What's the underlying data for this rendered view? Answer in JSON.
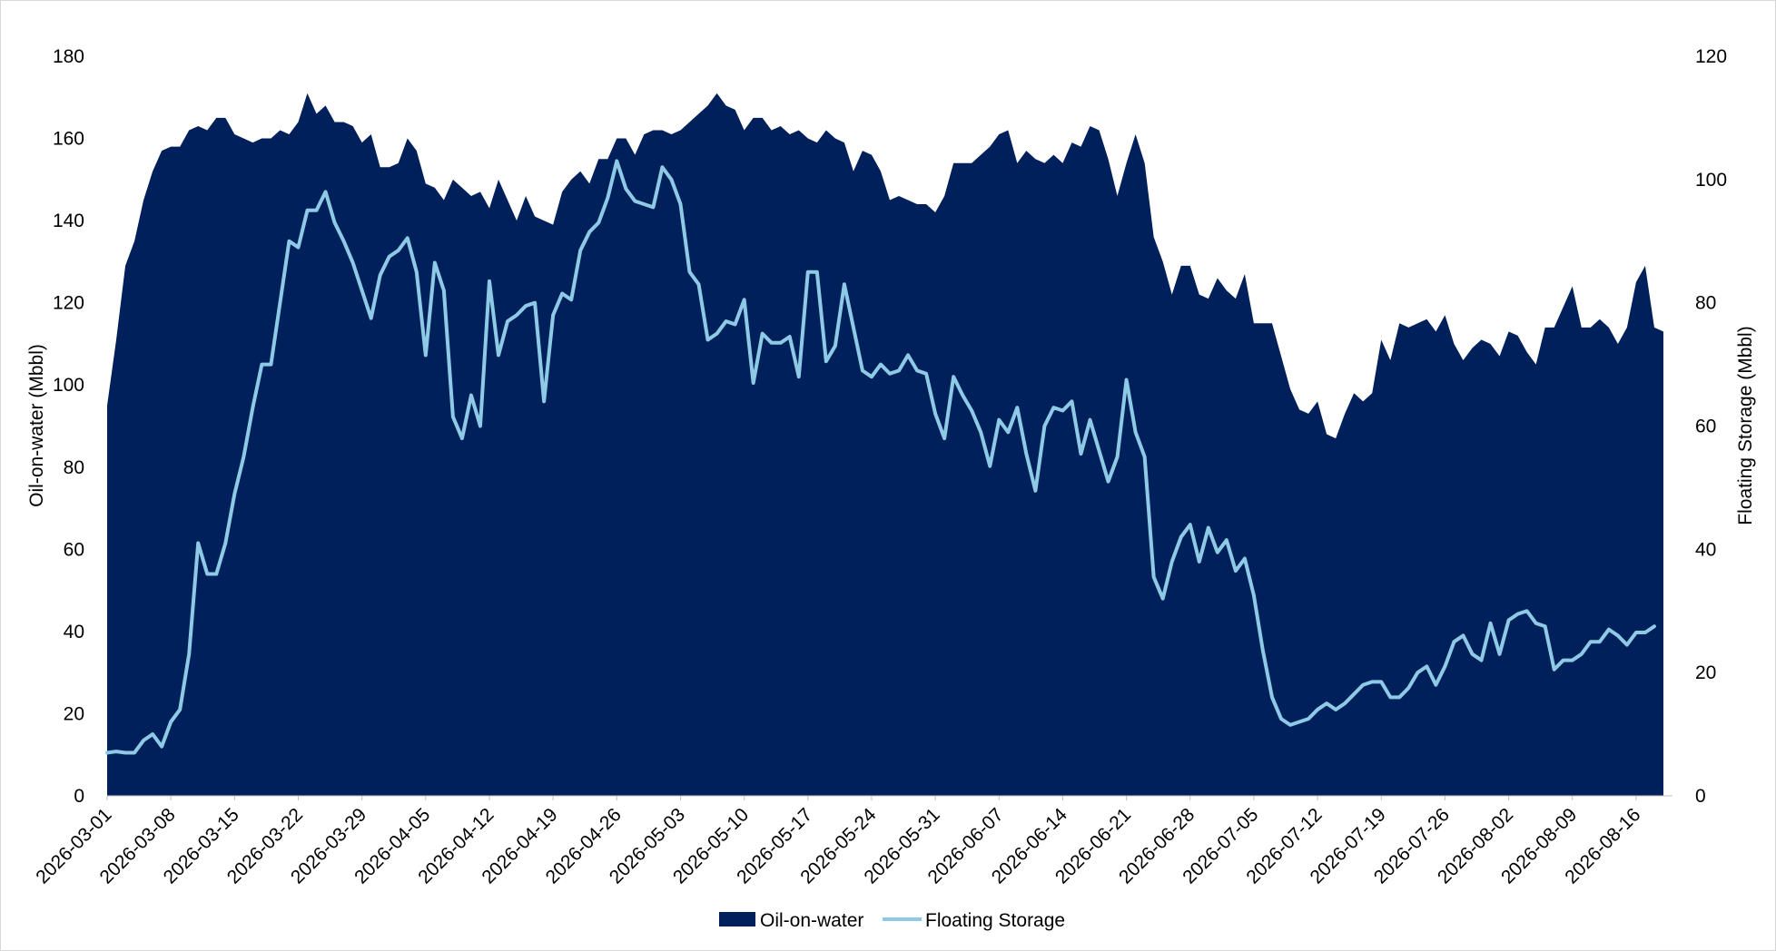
{
  "colors": {
    "oil_on_water": "#00205b",
    "floating_storage": "#8ecae6",
    "axis": "#bfbfbf"
  },
  "chart_data": {
    "type": "area",
    "title": "",
    "xlabel": "",
    "ylabel": "Oil-on-water (Mbbl)",
    "y2label": "Floating Storage (Mbbl)",
    "ylim": [
      0,
      180
    ],
    "y_ticks": [
      0,
      20,
      40,
      60,
      80,
      100,
      120,
      140,
      160,
      180
    ],
    "y2lim": [
      0,
      120
    ],
    "y2_ticks": [
      0,
      20,
      40,
      60,
      80,
      100,
      120
    ],
    "grid": false,
    "legend_position": "bottom",
    "x_start": "2026-03-01",
    "x_end": "2026-08-20",
    "x_tick_labels": [
      "2026-03-01",
      "2026-03-08",
      "2026-03-15",
      "2026-03-22",
      "2026-03-29",
      "2026-04-05",
      "2026-04-12",
      "2026-04-19",
      "2026-04-26",
      "2026-05-03",
      "2026-05-10",
      "2026-05-17",
      "2026-05-24",
      "2026-05-31",
      "2026-06-07",
      "2026-06-14",
      "2026-06-21",
      "2026-06-28",
      "2026-07-05",
      "2026-07-12",
      "2026-07-19",
      "2026-07-26",
      "2026-08-02",
      "2026-08-09",
      "2026-08-16"
    ],
    "series": [
      {
        "name": "Oil-on-water",
        "kind": "area",
        "axis": "left",
        "values": [
          95,
          111,
          129,
          135,
          145,
          152,
          157,
          158,
          158,
          162,
          163,
          162,
          165,
          165,
          161,
          160,
          159,
          160,
          160,
          162,
          161,
          164,
          171,
          166,
          168,
          164,
          164,
          163,
          159,
          161,
          153,
          153,
          154,
          160,
          157,
          149,
          148,
          145,
          150,
          148,
          146,
          147,
          143,
          150,
          145,
          140,
          146,
          141,
          140,
          139,
          147,
          150,
          152,
          149,
          155,
          155,
          160,
          160,
          156,
          161,
          162,
          162,
          161,
          162,
          164,
          166,
          168,
          171,
          168,
          167,
          162,
          165,
          165,
          162,
          163,
          161,
          162,
          160,
          159,
          162,
          160,
          159,
          152,
          157,
          156,
          152,
          145,
          146,
          145,
          144,
          144,
          142,
          146,
          154,
          154,
          154,
          156,
          158,
          161,
          162,
          154,
          157,
          155,
          154,
          156,
          154,
          159,
          158,
          163,
          162,
          155,
          146,
          154,
          161,
          154,
          136,
          130,
          122,
          129,
          129,
          122,
          121,
          126,
          123,
          121,
          127,
          115,
          115,
          115,
          107,
          99,
          94,
          93,
          96,
          88,
          87,
          93,
          98,
          96,
          98,
          111,
          106,
          115,
          114,
          115,
          116,
          113,
          117,
          110,
          106,
          109,
          111,
          110,
          107,
          113,
          112,
          108,
          105,
          114,
          114,
          119,
          124,
          114,
          114,
          116,
          114,
          110,
          114,
          125,
          129,
          114,
          113
        ]
      },
      {
        "name": "Floating Storage",
        "kind": "line",
        "axis": "right",
        "values": [
          7,
          7.2,
          7,
          7,
          9,
          10,
          8,
          12,
          14,
          23,
          41,
          36,
          36,
          41,
          49,
          55,
          63,
          70,
          70,
          80,
          90,
          89,
          95,
          95,
          98,
          93,
          90,
          86.5,
          82,
          77.5,
          84.5,
          87.5,
          88.5,
          90.5,
          85,
          71.5,
          86.5,
          82,
          61.5,
          58,
          65,
          60,
          83.5,
          71.5,
          77,
          78,
          79.5,
          80,
          64,
          78,
          81.5,
          80.5,
          88.5,
          91.5,
          93,
          97,
          103,
          98.5,
          96.5,
          96,
          95.5,
          102,
          100,
          96,
          85,
          83,
          74,
          75,
          77,
          76.5,
          80.5,
          67,
          75,
          73.5,
          73.5,
          74.5,
          68,
          85,
          85,
          70.5,
          73,
          83,
          76,
          69,
          68,
          70,
          68.5,
          69,
          71.5,
          69,
          68.5,
          62,
          58,
          68,
          65,
          62.5,
          59,
          53.5,
          61,
          59,
          63,
          55.5,
          49.5,
          60,
          63,
          62.5,
          64,
          55.5,
          61,
          56,
          51,
          55,
          67.5,
          59,
          55,
          35.5,
          32,
          38,
          42,
          44,
          38,
          43.5,
          39.5,
          41.5,
          36.5,
          38.5,
          32.5,
          23.5,
          16,
          12.5,
          11.5,
          12,
          12.5,
          14,
          15,
          14,
          15,
          16.5,
          18,
          18.5,
          18.5,
          16,
          16,
          17.5,
          20,
          21,
          18,
          21,
          25,
          26,
          23,
          22,
          28,
          23,
          28.5,
          29.5,
          30,
          28,
          27.5,
          20.5,
          22,
          22,
          23,
          25,
          25,
          27,
          26,
          24.5,
          26.5,
          26.5,
          27.5
        ]
      }
    ]
  },
  "legend": {
    "items": [
      {
        "label": "Oil-on-water"
      },
      {
        "label": "Floating Storage"
      }
    ]
  }
}
